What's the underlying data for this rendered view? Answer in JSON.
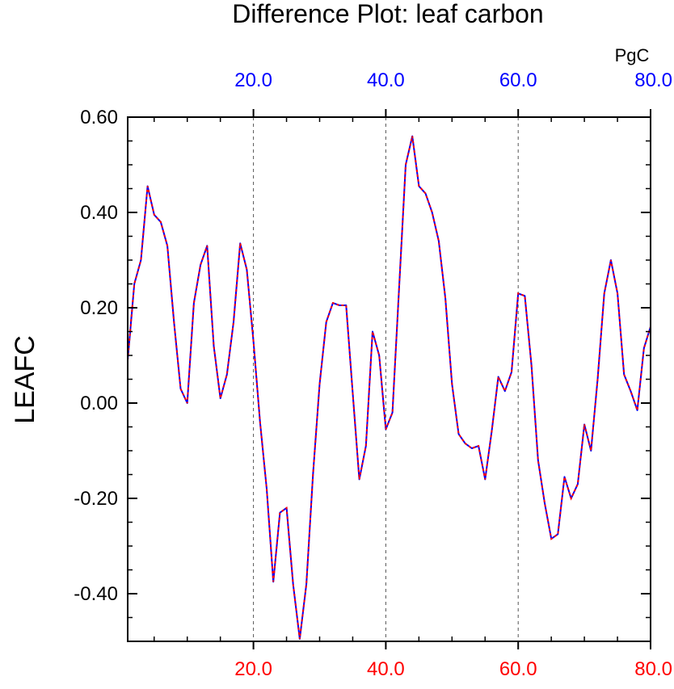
{
  "chart_data": {
    "type": "line",
    "title": "Difference Plot: leaf carbon",
    "ylabel": "LEAFC",
    "units_label": "PgC",
    "xlim": [
      1,
      80
    ],
    "ylim": [
      -0.5,
      0.6
    ],
    "y_ticks": [
      "0.60",
      "0.40",
      "0.20",
      "0.00",
      "-0.20",
      "-0.40"
    ],
    "y_tick_values": [
      0.6,
      0.4,
      0.2,
      0.0,
      -0.2,
      -0.4
    ],
    "x_ticks_bottom": [
      "20.0",
      "40.0",
      "60.0",
      "80.0"
    ],
    "x_ticks_top": [
      "20.0",
      "40.0",
      "60.0",
      "80.0"
    ],
    "x_tick_values": [
      20,
      40,
      60,
      80
    ],
    "grid": "vertical dashed at 20, 40, 60",
    "colors": {
      "series_solid": "#0000ff",
      "series_dash": "#ff0000",
      "top_ticks": "#0000ff",
      "bottom_ticks": "#ff0000",
      "grid": "#555555"
    },
    "series": [
      {
        "x": [
          1,
          2,
          3,
          4,
          5,
          6,
          7,
          8,
          9,
          10,
          11,
          12,
          13,
          14,
          15,
          16,
          17,
          18,
          19,
          20,
          21,
          22,
          23,
          24,
          25,
          26,
          27,
          28,
          29,
          30,
          31,
          32,
          33,
          34,
          35,
          36,
          37,
          38,
          39,
          40,
          41,
          42,
          43,
          44,
          45,
          46,
          47,
          48,
          49,
          50,
          51,
          52,
          53,
          54,
          55,
          56,
          57,
          58,
          59,
          60,
          61,
          62,
          63,
          64,
          65,
          66,
          67,
          68,
          69,
          70,
          71,
          72,
          73,
          74,
          75,
          76,
          77,
          78,
          79,
          80
        ],
        "y": [
          0.09,
          0.25,
          0.3,
          0.455,
          0.395,
          0.38,
          0.33,
          0.17,
          0.03,
          0.0,
          0.21,
          0.29,
          0.33,
          0.12,
          0.01,
          0.06,
          0.17,
          0.335,
          0.28,
          0.13,
          -0.04,
          -0.18,
          -0.375,
          -0.23,
          -0.22,
          -0.38,
          -0.495,
          -0.38,
          -0.15,
          0.04,
          0.17,
          0.21,
          0.205,
          0.205,
          0.02,
          -0.16,
          -0.09,
          0.15,
          0.1,
          -0.055,
          -0.02,
          0.24,
          0.5,
          0.56,
          0.455,
          0.44,
          0.4,
          0.34,
          0.22,
          0.04,
          -0.065,
          -0.085,
          -0.095,
          -0.09,
          -0.16,
          -0.06,
          0.055,
          0.025,
          0.065,
          0.23,
          0.225,
          0.08,
          -0.12,
          -0.21,
          -0.285,
          -0.275,
          -0.155,
          -0.2,
          -0.17,
          -0.045,
          -0.1,
          0.05,
          0.23,
          0.3,
          0.23,
          0.06,
          0.025,
          -0.015,
          0.115,
          0.16
        ]
      }
    ]
  }
}
